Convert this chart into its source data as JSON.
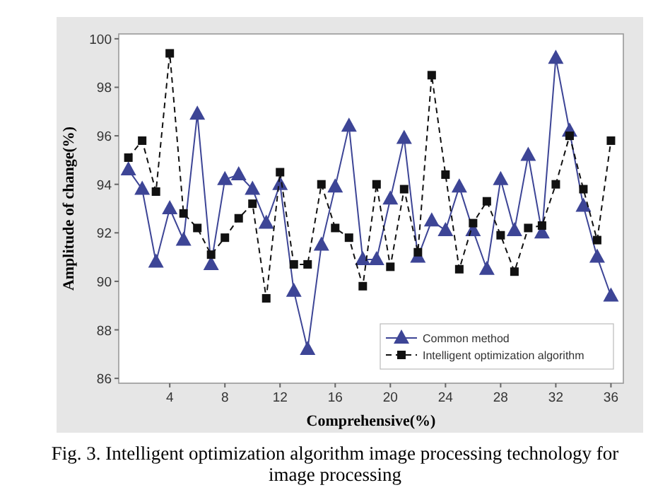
{
  "chart_data": {
    "type": "line",
    "xlabel": "Comprehensive(%)",
    "ylabel": "Amplitude of change(%)",
    "annotations": [
      "Fig. 3.   Intelligent optimization algorithm image processing technology for image processing"
    ],
    "x": [
      1,
      2,
      3,
      4,
      5,
      6,
      7,
      8,
      9,
      10,
      11,
      12,
      13,
      14,
      15,
      16,
      17,
      18,
      19,
      20,
      21,
      22,
      23,
      24,
      25,
      26,
      27,
      28,
      29,
      30,
      31,
      32,
      33,
      34,
      35,
      36
    ],
    "xlim": [
      0.3,
      36.9
    ],
    "xticks": [
      4,
      8,
      12,
      16,
      20,
      24,
      28,
      32,
      36
    ],
    "ylim": [
      85.8,
      100.2
    ],
    "yticks": [
      86,
      88,
      90,
      92,
      94,
      96,
      98,
      100
    ],
    "grid": false,
    "legend": "bottom right",
    "series": [
      {
        "name": "Common method",
        "color": "#3d4596",
        "marker": "triangle",
        "line_style": "solid",
        "values": [
          94.6,
          93.8,
          90.8,
          93.0,
          91.7,
          96.9,
          90.7,
          94.2,
          94.4,
          93.8,
          92.4,
          94.0,
          89.6,
          87.2,
          91.5,
          93.9,
          96.4,
          90.9,
          90.9,
          93.4,
          95.9,
          91.0,
          92.5,
          92.1,
          93.9,
          92.1,
          90.5,
          94.2,
          92.1,
          95.2,
          92.0,
          99.2,
          96.2,
          93.1,
          91.0,
          89.4
        ]
      },
      {
        "name": "Intelligent optimization algorithm",
        "color": "#111111",
        "marker": "square",
        "line_style": "dashed",
        "values": [
          95.1,
          95.8,
          93.7,
          99.4,
          92.8,
          92.2,
          91.1,
          91.8,
          92.6,
          93.2,
          89.3,
          94.5,
          90.7,
          90.7,
          94.0,
          92.2,
          91.8,
          89.8,
          94.0,
          90.6,
          93.8,
          91.2,
          98.5,
          94.4,
          90.5,
          92.4,
          93.3,
          91.9,
          90.4,
          92.2,
          92.3,
          94.0,
          96.0,
          93.8,
          91.7,
          95.8
        ]
      }
    ]
  }
}
